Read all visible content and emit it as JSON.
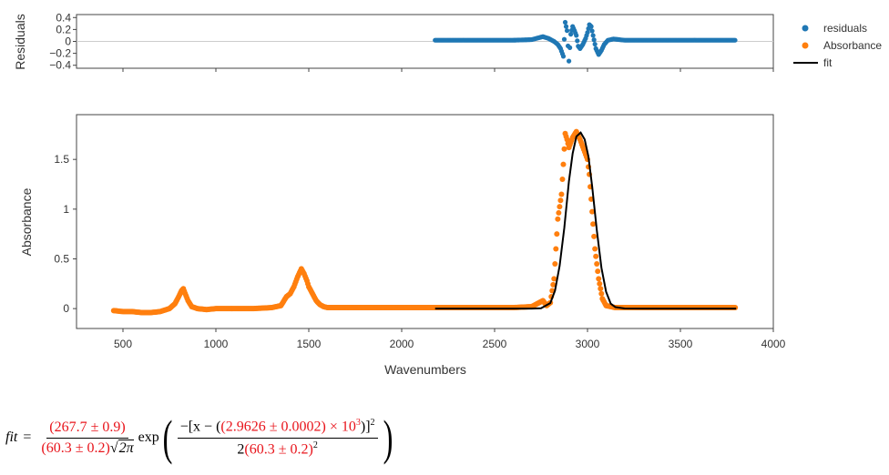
{
  "chart_data": [
    {
      "type": "scatter",
      "panel": "residuals",
      "ylabel": "Residuals",
      "xlim": [
        250,
        4000
      ],
      "ylim": [
        -0.45,
        0.45
      ],
      "yticks": [
        0.4,
        0.2,
        0,
        -0.2,
        -0.4
      ],
      "ytick_labels": [
        "0.4",
        "0.2",
        "0",
        "−0.2",
        "−0.4"
      ],
      "zero_line": true,
      "series": [
        {
          "name": "residuals",
          "color": "#1f77b4",
          "x": [
            2180,
            2300,
            2450,
            2600,
            2700,
            2760,
            2790,
            2820,
            2840,
            2855,
            2870,
            2880,
            2890,
            2900,
            2910,
            2920,
            2930,
            2940,
            2950,
            2960,
            2975,
            2990,
            3000,
            3010,
            3020,
            3030,
            3045,
            3060,
            3075,
            3090,
            3110,
            3140,
            3200,
            3300,
            3450,
            3600,
            3700,
            3800
          ],
          "y": [
            0.02,
            0.02,
            0.02,
            0.02,
            0.03,
            0.08,
            0.05,
            0.0,
            -0.05,
            -0.12,
            -0.25,
            0.32,
            0.18,
            -0.33,
            0.12,
            0.25,
            0.18,
            0.1,
            -0.08,
            -0.12,
            -0.05,
            0.05,
            0.15,
            0.28,
            0.25,
            0.1,
            -0.12,
            -0.22,
            -0.15,
            -0.05,
            0.02,
            0.04,
            0.02,
            0.02,
            0.02,
            0.02,
            0.02,
            0.02
          ]
        }
      ]
    },
    {
      "type": "scatter",
      "panel": "main",
      "xlabel": "Wavenumbers",
      "ylabel": "Absorbance",
      "xlim": [
        250,
        4000
      ],
      "ylim": [
        -0.2,
        1.95
      ],
      "xticks": [
        500,
        1000,
        1500,
        2000,
        2500,
        3000,
        3500,
        4000
      ],
      "xtick_labels": [
        "500",
        "1000",
        "1500",
        "2000",
        "2500",
        "3000",
        "3500",
        "4000"
      ],
      "yticks": [
        0,
        0.5,
        1,
        1.5
      ],
      "ytick_labels": [
        "0",
        "0.5",
        "1",
        "1.5"
      ],
      "series": [
        {
          "name": "Absorbance",
          "color": "#ff7f0e",
          "x": [
            450,
            500,
            550,
            600,
            650,
            700,
            750,
            780,
            800,
            815,
            825,
            835,
            850,
            870,
            900,
            950,
            1000,
            1100,
            1200,
            1300,
            1350,
            1380,
            1400,
            1420,
            1440,
            1460,
            1475,
            1490,
            1500,
            1520,
            1540,
            1560,
            1580,
            1600,
            1700,
            1800,
            1900,
            2000,
            2100,
            2200,
            2300,
            2400,
            2500,
            2600,
            2700,
            2760,
            2780,
            2800,
            2820,
            2840,
            2860,
            2870,
            2880,
            2890,
            2900,
            2920,
            2940,
            2960,
            2980,
            3000,
            3010,
            3020,
            3030,
            3040,
            3060,
            3080,
            3100,
            3150,
            3200,
            3300,
            3400,
            3500,
            3600,
            3700,
            3800
          ],
          "y": [
            -0.02,
            -0.03,
            -0.03,
            -0.04,
            -0.04,
            -0.03,
            0.0,
            0.05,
            0.12,
            0.18,
            0.2,
            0.15,
            0.08,
            0.02,
            0.0,
            -0.01,
            0.0,
            0.0,
            0.0,
            0.01,
            0.03,
            0.12,
            0.15,
            0.22,
            0.32,
            0.4,
            0.35,
            0.28,
            0.22,
            0.15,
            0.08,
            0.04,
            0.02,
            0.01,
            0.01,
            0.01,
            0.01,
            0.01,
            0.01,
            0.01,
            0.01,
            0.01,
            0.01,
            0.01,
            0.02,
            0.08,
            0.03,
            0.06,
            0.3,
            0.9,
            1.15,
            1.45,
            1.76,
            1.7,
            1.62,
            1.72,
            1.78,
            1.7,
            1.6,
            1.5,
            1.35,
            1.1,
            0.85,
            0.6,
            0.3,
            0.1,
            0.03,
            0.01,
            0.01,
            0.01,
            0.01,
            0.01,
            0.01,
            0.01,
            0.01
          ]
        },
        {
          "name": "fit",
          "color": "#000000",
          "kind": "line",
          "x": [
            2180,
            2300,
            2400,
            2500,
            2600,
            2700,
            2750,
            2800,
            2825,
            2850,
            2875,
            2900,
            2920,
            2940,
            2963,
            2985,
            3005,
            3025,
            3050,
            3075,
            3100,
            3125,
            3150,
            3200,
            3300,
            3400,
            3500,
            3600,
            3700,
            3800
          ],
          "y": [
            0,
            0,
            0,
            0,
            0,
            0.0005,
            0.0036,
            0.056,
            0.18,
            0.43,
            0.81,
            1.28,
            1.56,
            1.73,
            1.77,
            1.7,
            1.53,
            1.23,
            0.79,
            0.41,
            0.17,
            0.05,
            0.015,
            0.001,
            0,
            0,
            0,
            0,
            0,
            0
          ]
        }
      ]
    }
  ],
  "legend": {
    "placement": "top-right",
    "items": [
      {
        "label": "residuals",
        "color": "#1f77b4",
        "kind": "marker"
      },
      {
        "label": "Absorbance",
        "color": "#ff7f0e",
        "kind": "marker"
      },
      {
        "label": "fit",
        "color": "#000000",
        "kind": "line"
      }
    ]
  },
  "formula": {
    "lhs": "fit",
    "equals": "=",
    "amplitude": "(267.7 ± 0.9)",
    "width_den": "(60.3 ± 0.2)",
    "sqrt_two_pi": "2π",
    "exp": "exp",
    "minus_x": "−[x − (",
    "center": "(2.9626 ± 0.0002) × 10",
    "center_exp": "3",
    "close_bracket": ")]",
    "square": "2",
    "denom_two": "2",
    "width_sq": "(60.3 ± 0.2)",
    "width_sq_exp": "2"
  }
}
